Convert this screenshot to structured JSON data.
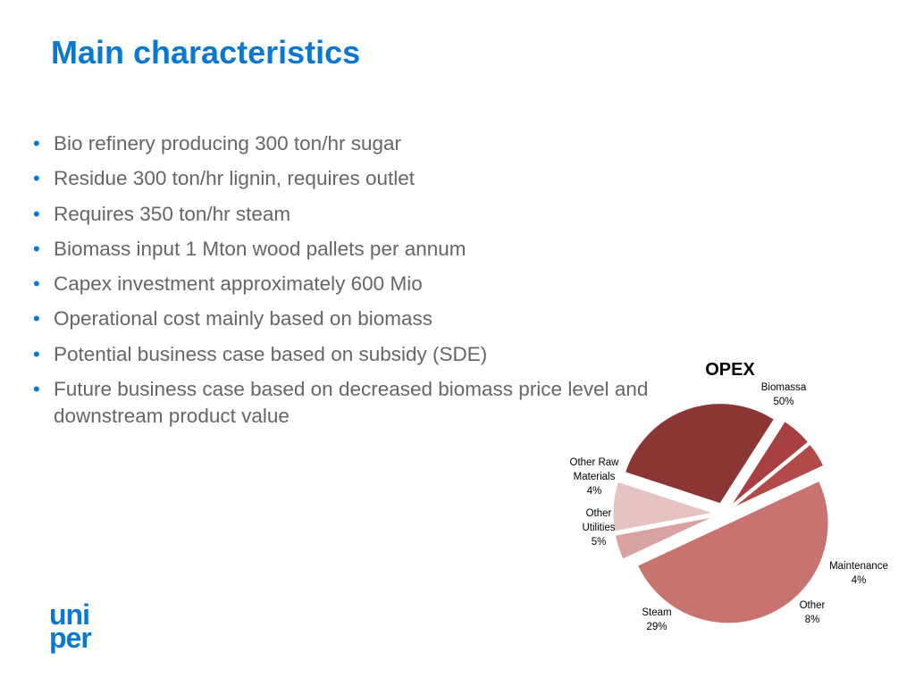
{
  "title": "Main characteristics",
  "bullets": [
    "Bio refinery producing 300 ton/hr sugar",
    "Residue 300 ton/hr lignin, requires outlet",
    "Requires 350 ton/hr steam",
    "Biomass input 1 Mton wood pallets per annum",
    "Capex investment approximately 600 Mio",
    "Operational cost mainly based on biomass",
    "Potential business case based on subsidy (SDE)",
    "Future business case based on decreased biomass price level and downstream product value"
  ],
  "bullet_glyph": "•",
  "colors": {
    "accent": "#0a78d0",
    "body_text": "#666666"
  },
  "logo": {
    "line1": "uni",
    "line2": "per"
  },
  "chart_data": {
    "type": "pie",
    "title": "OPEX",
    "slices": [
      {
        "label": "Biomassa",
        "value": 50,
        "value_label": "50%",
        "color": "#c87370"
      },
      {
        "label": "Maintenance",
        "value": 4,
        "value_label": "4%",
        "color": "#d9a2a1"
      },
      {
        "label": "Other",
        "value": 8,
        "value_label": "8%",
        "color": "#e6c3c3"
      },
      {
        "label": "Steam",
        "value": 29,
        "value_label": "29%",
        "color": "#8b3535"
      },
      {
        "label": "Other Utilities",
        "value": 5,
        "value_label": "5%",
        "color": "#a64042"
      },
      {
        "label": "Other Raw Materials",
        "value": 4,
        "value_label": "4%",
        "color": "#b34a4a"
      }
    ],
    "exploded": true
  }
}
